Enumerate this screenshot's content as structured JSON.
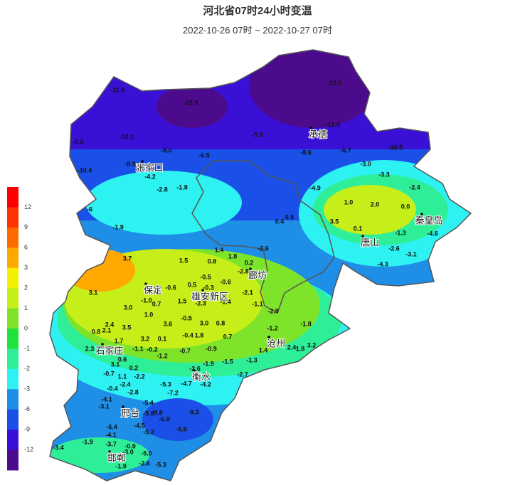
{
  "header": {
    "title": "河北省07时24小时变温",
    "subtitle": "2022-10-26 07时 ~ 2022-10-27 07时"
  },
  "legend": {
    "labels": [
      "12",
      "9",
      "6",
      "3",
      "2",
      "1",
      "0",
      "-1",
      "-2",
      "-3",
      "-6",
      "-9",
      "-12"
    ],
    "colors": [
      "#ff0000",
      "#ff3300",
      "#ff6a00",
      "#ffa800",
      "#f5f000",
      "#c6ee18",
      "#7ee42a",
      "#1fe23a",
      "#2fee98",
      "#2ef2f2",
      "#1e8ee6",
      "#1a50e8",
      "#3a10d6",
      "#4b0b8c"
    ]
  },
  "cities": [
    "张家口",
    "承德",
    "秦皇岛",
    "唐山",
    "廊坊",
    "保定",
    "雄安新区",
    "沧州",
    "石家庄",
    "衡水",
    "邢台",
    "邯郸"
  ],
  "stations": [
    "-11.9",
    "-12.9",
    "-12.0",
    "-12.6",
    "-9.9",
    "-10.2",
    "-8.6",
    "-8.0",
    "-6.5",
    "-8.6",
    "-6.7",
    "-10.5",
    "-10.4",
    "-8.9",
    "-4.2",
    "-3.0",
    "-3.3",
    "-2.8",
    "-1.8",
    "-4.9",
    "-2.4",
    "-6",
    "1.0",
    "2.0",
    "0.0",
    "3.5",
    "0.4",
    "0.5",
    "-1.9",
    "0.1",
    "-1.3",
    "-4.6",
    "-2.6",
    "-3.1",
    "-4.3",
    "3.7",
    "1.5",
    "0.8",
    "1.4",
    "1.8",
    "-2.6",
    "0.2",
    "-2.8",
    "3.1",
    "-0.6",
    "-0.5",
    "0.5",
    "-0.3",
    "-0.6",
    "-2.1",
    "-1.0",
    "0.7",
    "1.5",
    "-2.3",
    "-1.4",
    "-1.1",
    "3.0",
    "1.0",
    "-0.5",
    "3.0",
    "0.8",
    "-2.9",
    "3.6",
    "-1.8",
    "1.8",
    "-0.4",
    "0.7",
    "-1.2",
    "2.4",
    "3.5",
    "0.8",
    "2.1",
    "1.7",
    "3.2",
    "0.1",
    "2.4",
    "1.8",
    "3.2",
    "1.4",
    "2.3",
    "-1.1",
    "-0.2",
    "-0.7",
    "-0.9",
    "0.6",
    "-1.2",
    "-1.3",
    "3.1",
    "0.2",
    "-1.5",
    "-2.7",
    "-0.7",
    "1.1",
    "-2.2",
    "-2.6",
    "-1.9",
    "-4.7",
    "-4.2",
    "-2.4",
    "-5.3",
    "-0.4",
    "-2.8",
    "-7.2",
    "-4.1",
    "-5.4",
    "-3.1",
    "-5.8",
    "-9.8",
    "-9.3",
    "-6.9",
    "-6.4",
    "-4.5",
    "-5.9",
    "-5.2",
    "-4.1",
    "-1.9",
    "-3.7",
    "-3.4",
    "-0.9",
    "-3.0",
    "-5.0",
    "-2.6",
    "-5.3",
    "-1.9"
  ]
}
